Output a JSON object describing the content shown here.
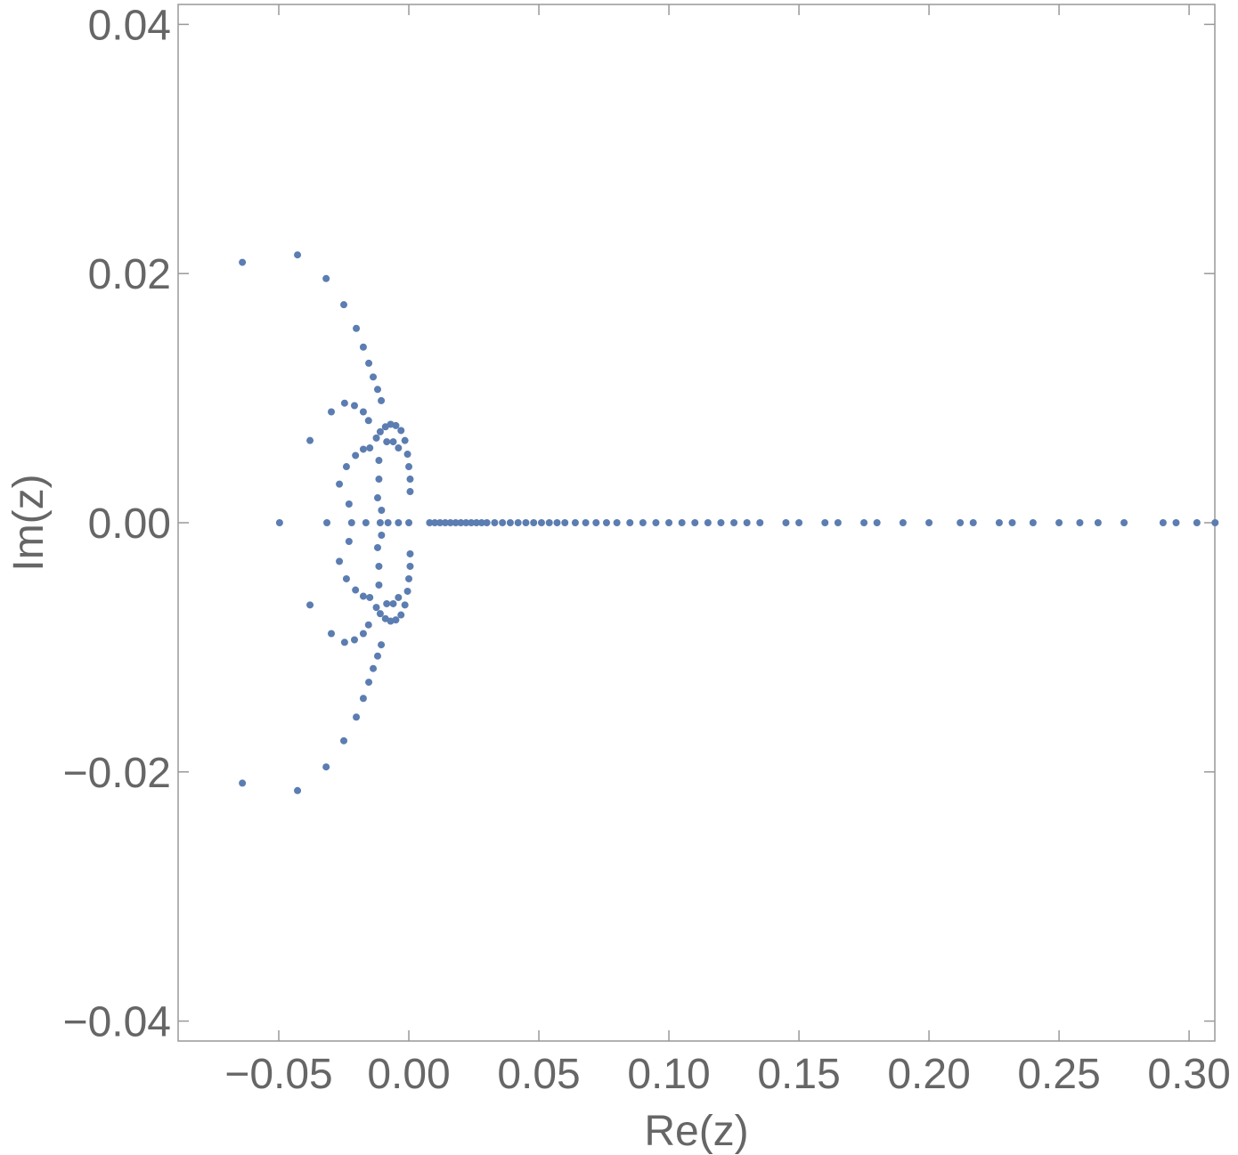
{
  "chart_data": {
    "type": "scatter",
    "x_label": "Re(z)",
    "y_label": "Im(z)",
    "color": "#5b7db1",
    "xlim": [
      -0.0887,
      0.3099
    ],
    "ylim": [
      -0.0416,
      0.0416
    ],
    "xticks": [
      {
        "value": -0.05,
        "label": "−0.05"
      },
      {
        "value": 0,
        "label": "0.00"
      },
      {
        "value": 0.05,
        "label": "0.05"
      },
      {
        "value": 0.1,
        "label": "0.10"
      },
      {
        "value": 0.15,
        "label": "0.15"
      },
      {
        "value": 0.2,
        "label": "0.20"
      },
      {
        "value": 0.25,
        "label": "0.25"
      },
      {
        "value": 0.3,
        "label": "0.30"
      }
    ],
    "yticks": [
      {
        "value": -0.04,
        "label": "−0.04"
      },
      {
        "value": -0.02,
        "label": "−0.02"
      },
      {
        "value": 0,
        "label": "0.00"
      },
      {
        "value": 0.02,
        "label": "0.02"
      },
      {
        "value": 0.04,
        "label": "0.04"
      }
    ],
    "x": [
      -0.064,
      -0.0428,
      -0.0318,
      -0.025,
      -0.0202,
      -0.0175,
      -0.0154,
      -0.0137,
      -0.012,
      -0.0106,
      -0.038,
      -0.0298,
      -0.0247,
      -0.0209,
      -0.0175,
      -0.0155,
      -0.0267,
      -0.024,
      -0.0205,
      -0.0175,
      -0.015,
      -0.023,
      -0.0125,
      -0.011,
      -0.009,
      -0.007,
      -0.005,
      -0.003,
      -0.0015,
      -0.0005,
      0.0,
      0.0005,
      0.0005,
      -0.0115,
      -0.0115,
      -0.012,
      -0.0105,
      -0.0085,
      -0.006,
      -0.004,
      -0.064,
      -0.0428,
      -0.0318,
      -0.025,
      -0.0202,
      -0.0175,
      -0.0154,
      -0.0137,
      -0.012,
      -0.0106,
      -0.038,
      -0.0298,
      -0.0247,
      -0.0209,
      -0.0175,
      -0.0155,
      -0.0267,
      -0.024,
      -0.0205,
      -0.0175,
      -0.015,
      -0.023,
      -0.0125,
      -0.011,
      -0.009,
      -0.007,
      -0.005,
      -0.003,
      -0.0015,
      -0.0005,
      0.0,
      0.0005,
      0.0005,
      -0.0115,
      -0.0115,
      -0.012,
      -0.0105,
      -0.0085,
      -0.006,
      -0.004,
      -0.0497,
      -0.0315,
      -0.022,
      -0.0165,
      -0.011,
      -0.008,
      -0.004,
      0.0,
      0.008,
      0.01,
      0.012,
      0.014,
      0.016,
      0.018,
      0.02,
      0.022,
      0.024,
      0.026,
      0.028,
      0.03,
      0.033,
      0.036,
      0.039,
      0.042,
      0.045,
      0.048,
      0.051,
      0.054,
      0.057,
      0.06,
      0.064,
      0.068,
      0.072,
      0.076,
      0.08,
      0.085,
      0.09,
      0.095,
      0.1,
      0.105,
      0.11,
      0.115,
      0.12,
      0.125,
      0.13,
      0.135,
      0.145,
      0.15,
      0.16,
      0.165,
      0.175,
      0.18,
      0.19,
      0.2,
      0.212,
      0.217,
      0.227,
      0.232,
      0.24,
      0.25,
      0.258,
      0.265,
      0.275,
      0.29,
      0.295,
      0.303,
      0.31
    ],
    "y": [
      0.0209,
      0.0215,
      0.0196,
      0.0175,
      0.0156,
      0.0141,
      0.0128,
      0.0117,
      0.0107,
      0.0098,
      0.0066,
      0.0089,
      0.0096,
      0.0094,
      0.0089,
      0.0082,
      0.0031,
      0.0045,
      0.0054,
      0.0059,
      0.006,
      0.0015,
      0.0068,
      0.0073,
      0.0077,
      0.0079,
      0.0078,
      0.0074,
      0.0066,
      0.0055,
      0.0045,
      0.0035,
      0.0025,
      0.005,
      0.0035,
      0.002,
      0.001,
      0.0065,
      0.0065,
      0.006,
      -0.0209,
      -0.0215,
      -0.0196,
      -0.0175,
      -0.0156,
      -0.0141,
      -0.0128,
      -0.0117,
      -0.0107,
      -0.0098,
      -0.0066,
      -0.0089,
      -0.0096,
      -0.0094,
      -0.0089,
      -0.0082,
      -0.0031,
      -0.0045,
      -0.0054,
      -0.0059,
      -0.006,
      -0.0015,
      -0.0068,
      -0.0073,
      -0.0077,
      -0.0079,
      -0.0078,
      -0.0074,
      -0.0066,
      -0.0055,
      -0.0045,
      -0.0035,
      -0.0025,
      -0.005,
      -0.0035,
      -0.002,
      -0.001,
      -0.0065,
      -0.0065,
      -0.006,
      0,
      0,
      0,
      0,
      0,
      0,
      0,
      0,
      0,
      0,
      0,
      0,
      0,
      0,
      0,
      0,
      0,
      0,
      0,
      0,
      0,
      0,
      0,
      0,
      0,
      0,
      0,
      0,
      0,
      0,
      0,
      0,
      0,
      0,
      0,
      0,
      0,
      0,
      0,
      0,
      0,
      0,
      0,
      0,
      0,
      0,
      0,
      0,
      0,
      0,
      0,
      0,
      0,
      0,
      0,
      0,
      0,
      0,
      0,
      0,
      0,
      0,
      0,
      0,
      0,
      0,
      0
    ]
  }
}
